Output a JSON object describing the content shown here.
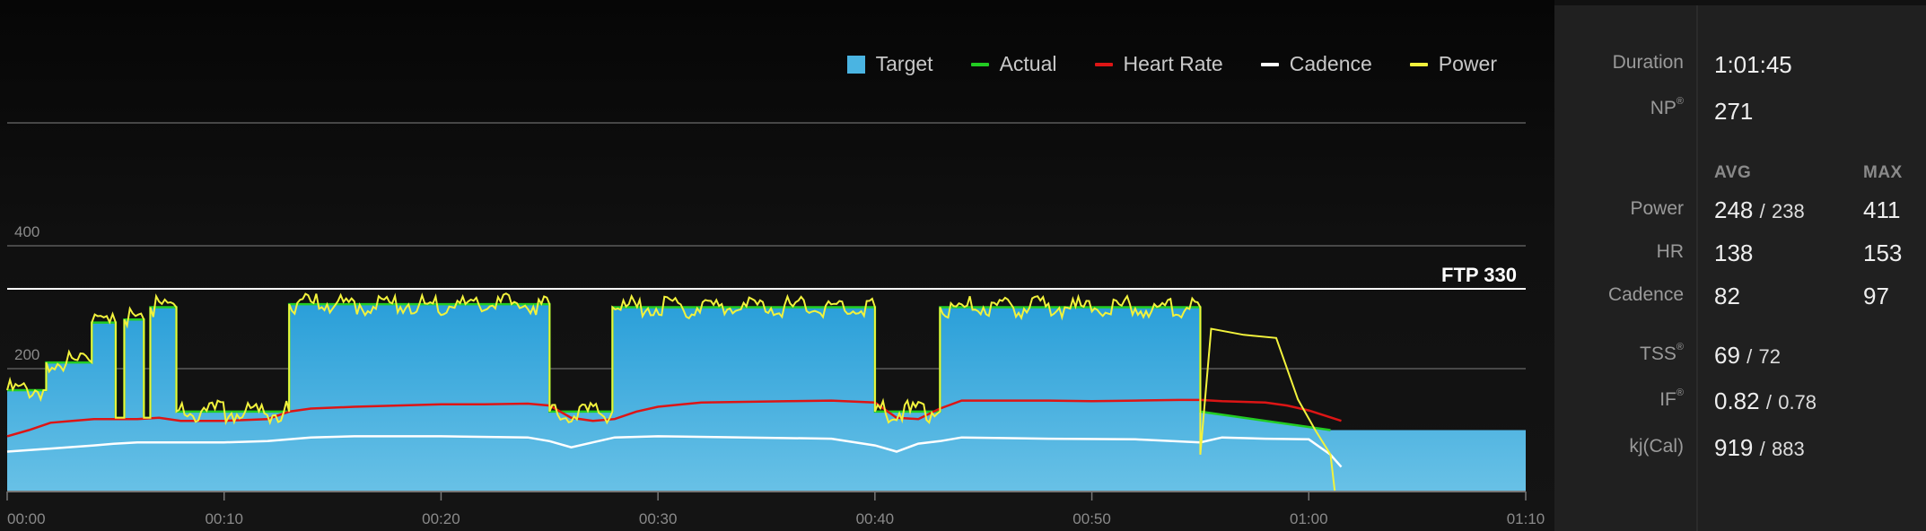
{
  "legend": [
    {
      "label": "Target",
      "color": "#4ab4e2",
      "shape": "box"
    },
    {
      "label": "Actual",
      "color": "#22cc22",
      "shape": "line"
    },
    {
      "label": "Heart Rate",
      "color": "#dd1515",
      "shape": "line"
    },
    {
      "label": "Cadence",
      "color": "#ffffff",
      "shape": "line"
    },
    {
      "label": "Power",
      "color": "#f2f23c",
      "shape": "line"
    }
  ],
  "chart_data": {
    "type": "area",
    "title": "",
    "xlabel": "",
    "ylabel": "",
    "x_unit": "minutes",
    "xlim": [
      0,
      70
    ],
    "ylim": [
      0,
      600
    ],
    "x_ticks": [
      "00:00",
      "00:10",
      "00:20",
      "00:30",
      "00:40",
      "00:50",
      "01:00",
      "01:10"
    ],
    "y_ticks": [
      "200",
      "400"
    ],
    "ftp_label": "FTP 330",
    "ftp_value": 330,
    "grid": true,
    "legend_position": "top-right",
    "series": [
      {
        "name": "Target",
        "color": "#4ab4e2",
        "x": [
          0,
          1.8,
          1.8,
          3.9,
          3.9,
          5.0,
          5.0,
          5.4,
          5.4,
          6.3,
          6.3,
          6.6,
          6.6,
          7.8,
          7.8,
          13.0,
          13.0,
          25.0,
          25.0,
          27.9,
          27.9,
          40.0,
          40.0,
          43.0,
          43.0,
          55.0,
          55.0,
          61.0,
          61.0,
          70.0
        ],
        "y": [
          165,
          165,
          210,
          210,
          275,
          275,
          120,
          120,
          280,
          280,
          120,
          120,
          300,
          300,
          130,
          130,
          305,
          305,
          130,
          130,
          300,
          300,
          130,
          130,
          300,
          300,
          130,
          100,
          100,
          100
        ]
      },
      {
        "name": "Actual",
        "color": "#22cc22",
        "x": [
          0,
          1.8,
          1.8,
          3.9,
          3.9,
          5.0,
          5.0,
          5.4,
          5.4,
          6.3,
          6.3,
          6.6,
          6.6,
          7.8,
          7.8,
          13.0,
          13.0,
          25.0,
          25.0,
          27.9,
          27.9,
          40.0,
          40.0,
          43.0,
          43.0,
          55.0,
          55.0,
          61.0
        ],
        "y": [
          165,
          165,
          210,
          210,
          275,
          275,
          120,
          120,
          280,
          280,
          120,
          120,
          300,
          300,
          130,
          130,
          305,
          305,
          130,
          130,
          300,
          300,
          130,
          130,
          300,
          300,
          130,
          100
        ]
      },
      {
        "name": "Heart Rate",
        "color": "#dd1515",
        "x": [
          0,
          1,
          2,
          3,
          4,
          5,
          6,
          7,
          8,
          10,
          12,
          13,
          14,
          16,
          18,
          20,
          22,
          24,
          25,
          26,
          27,
          28,
          29,
          30,
          32,
          34,
          36,
          38,
          40,
          41,
          42,
          43,
          44,
          46,
          48,
          50,
          52,
          54,
          55,
          56,
          58,
          59,
          60,
          61.5
        ],
        "y": [
          90,
          100,
          112,
          115,
          118,
          118,
          118,
          120,
          115,
          115,
          118,
          130,
          135,
          138,
          140,
          142,
          142,
          143,
          140,
          120,
          115,
          118,
          130,
          138,
          145,
          146,
          147,
          148,
          145,
          120,
          118,
          135,
          148,
          148,
          148,
          147,
          148,
          149,
          149,
          147,
          145,
          140,
          132,
          115
        ]
      },
      {
        "name": "Cadence",
        "color": "#ffffff",
        "x": [
          0,
          2,
          4,
          5,
          6,
          8,
          10,
          12,
          13,
          14,
          16,
          20,
          24,
          25,
          26,
          27,
          28,
          30,
          34,
          38,
          40,
          41,
          42,
          43,
          44,
          48,
          52,
          55,
          56,
          58,
          60,
          61,
          61.5
        ],
        "y": [
          65,
          70,
          75,
          78,
          80,
          80,
          80,
          82,
          85,
          88,
          90,
          90,
          88,
          82,
          72,
          80,
          88,
          90,
          88,
          86,
          75,
          65,
          78,
          82,
          88,
          86,
          85,
          80,
          88,
          86,
          85,
          60,
          40
        ]
      },
      {
        "name": "Power",
        "color": "#f2f23c",
        "x": [
          0,
          1.8,
          1.8,
          3.9,
          3.9,
          5.0,
          5.0,
          5.4,
          5.4,
          6.3,
          6.3,
          6.6,
          6.6,
          7.8,
          7.8,
          13.0,
          13.0,
          25.0,
          25.0,
          27.9,
          27.9,
          40.0,
          40.0,
          43.0,
          43.0,
          55.0,
          55.0,
          55.5,
          57,
          58.5,
          59.5,
          60.3,
          61.0,
          61.2
        ],
        "y": [
          165,
          165,
          210,
          210,
          275,
          275,
          120,
          120,
          280,
          280,
          120,
          120,
          300,
          300,
          130,
          130,
          305,
          305,
          130,
          130,
          300,
          300,
          130,
          130,
          300,
          300,
          60,
          265,
          255,
          250,
          150,
          100,
          60,
          0
        ]
      }
    ]
  },
  "stats": {
    "duration_label": "Duration",
    "duration_value": "1:01:45",
    "np_label": "NP",
    "np_mark": "®",
    "np_value": "271",
    "avg_header": "AVG",
    "max_header": "MAX",
    "power_label": "Power",
    "power_avg": "248",
    "power_sep": "/",
    "power_avg_alt": "238",
    "power_max": "411",
    "hr_label": "HR",
    "hr_avg": "138",
    "hr_max": "153",
    "cadence_label": "Cadence",
    "cadence_avg": "82",
    "cadence_max": "97",
    "tss_label": "TSS",
    "tss_mark": "®",
    "tss_value": "69",
    "tss_sep": "/",
    "tss_alt": "72",
    "if_label": "IF",
    "if_mark": "®",
    "if_value": "0.82",
    "if_sep": "/",
    "if_alt": "0.78",
    "kj_label": "kj(Cal)",
    "kj_value": "919",
    "kj_sep": "/",
    "kj_alt": "883"
  }
}
